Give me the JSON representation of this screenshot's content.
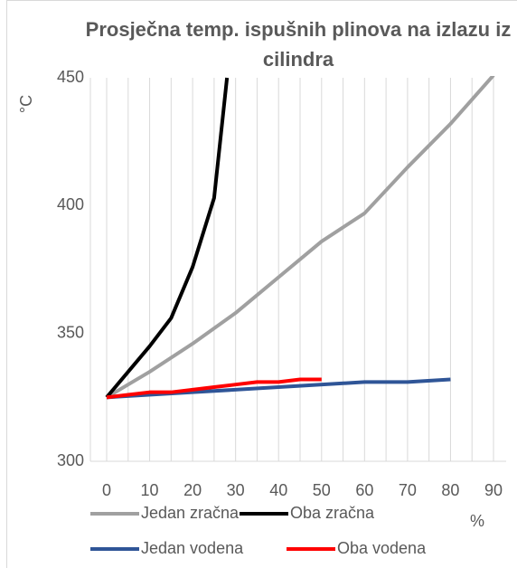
{
  "chart_data": {
    "type": "line",
    "title": "Prosječna temp. ispušnih plinova na izlazu iz cilindra",
    "y_label": "°C",
    "x_label": "%",
    "xlim": [
      0,
      90
    ],
    "xticks": [
      0,
      10,
      20,
      30,
      40,
      50,
      60,
      70,
      80,
      90
    ],
    "x_minor_gridlines": [
      5,
      15,
      25,
      35,
      45,
      55,
      65,
      75,
      85
    ],
    "ylim": [
      300,
      450
    ],
    "yticks": [
      300,
      350,
      400,
      450
    ],
    "grid": true,
    "series": [
      {
        "name": "Jedan zračna",
        "color": "#a0a0a0",
        "x": [
          0,
          10,
          20,
          30,
          40,
          50,
          60,
          70,
          80,
          90
        ],
        "values": [
          325,
          335,
          346,
          358,
          372,
          386,
          397,
          415,
          432,
          451
        ]
      },
      {
        "name": "Oba zračna",
        "color": "#000000",
        "x": [
          0,
          5,
          10,
          15,
          20,
          25,
          28
        ],
        "values": [
          325,
          335,
          345,
          356,
          376,
          403,
          450
        ]
      },
      {
        "name": "Jedan vodena",
        "color": "#2f5597",
        "x": [
          0,
          20,
          40,
          60,
          70,
          80
        ],
        "values": [
          325,
          327,
          329,
          331,
          331,
          332
        ]
      },
      {
        "name": "Oba vodena",
        "color": "#ff0000",
        "x": [
          0,
          5,
          10,
          15,
          20,
          25,
          30,
          35,
          40,
          45,
          50
        ],
        "values": [
          325,
          326,
          327,
          327,
          328,
          329,
          330,
          331,
          331,
          332,
          332
        ]
      }
    ]
  }
}
